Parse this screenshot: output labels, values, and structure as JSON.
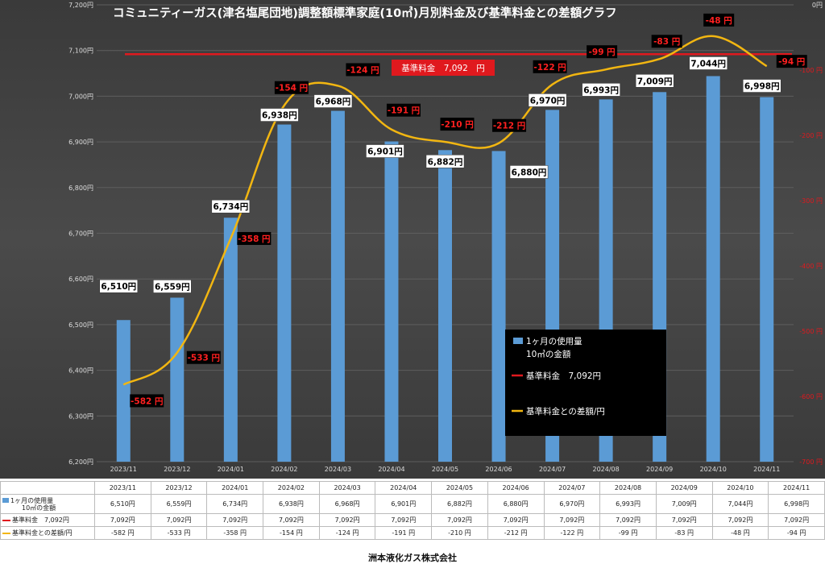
{
  "chart_data": {
    "type": "bar",
    "title": "コミュニティーガス(津名塩尾団地)調整額標準家庭(10㎥)月別料金及び基準料金との差額グラフ",
    "categories": [
      "2023/11",
      "2023/12",
      "2024/01",
      "2024/02",
      "2024/03",
      "2024/04",
      "2024/05",
      "2024/06",
      "2024/07",
      "2024/08",
      "2024/09",
      "2024/10",
      "2024/11"
    ],
    "series": [
      {
        "name_line1": "1ヶ月の使用量",
        "name_line2": "10㎥の金額",
        "type": "bar",
        "axis": "left",
        "color": "#5b9bd5",
        "values": [
          6510,
          6559,
          6734,
          6938,
          6968,
          6901,
          6882,
          6880,
          6970,
          6993,
          7009,
          7044,
          6998
        ],
        "labels": [
          "6,510円",
          "6,559円",
          "6,734円",
          "6,938円",
          "6,968円",
          "6,901円",
          "6,882円",
          "6,880円",
          "6,970円",
          "6,993円",
          "7,009円",
          "7,044円",
          "6,998円"
        ]
      },
      {
        "name": "基準料金　7,092円",
        "type": "line",
        "axis": "left",
        "color": "#e0191e",
        "values": [
          7092,
          7092,
          7092,
          7092,
          7092,
          7092,
          7092,
          7092,
          7092,
          7092,
          7092,
          7092,
          7092
        ]
      },
      {
        "name": "基準料金との差額/円",
        "type": "line",
        "axis": "right",
        "color": "#f2b611",
        "values": [
          -582,
          -533,
          -358,
          -154,
          -124,
          -191,
          -210,
          -212,
          -122,
          -99,
          -83,
          -48,
          -94
        ],
        "labels": [
          "-582 円",
          "-533 円",
          "-358 円",
          "-154 円",
          "-124 円",
          "-191 円",
          "-210 円",
          "-212 円",
          "-122 円",
          "-99 円",
          "-83 円",
          "-48 円",
          "-94 円"
        ]
      }
    ],
    "left_axis": {
      "min": 6200,
      "max": 7200,
      "step": 100,
      "tick_labels": [
        "6,200円",
        "6,300円",
        "6,400円",
        "6,500円",
        "6,600円",
        "6,700円",
        "6,800円",
        "6,900円",
        "7,000円",
        "7,100円",
        "7,200円"
      ]
    },
    "right_axis": {
      "min": -700,
      "max": 0,
      "step": 100,
      "tick_labels": [
        "-700 円",
        "-600 円",
        "-500 円",
        "-400 円",
        "-300 円",
        "-200 円",
        "-100 円",
        "0円"
      ]
    },
    "annotation": "基準料金　7,092　円",
    "legend": {
      "placement": "bottom-right",
      "items": [
        "1ヶ月の使用量",
        "10㎥の金額",
        "基準料金　7,092円",
        "基準料金との差額/円"
      ]
    },
    "table": {
      "row_labels": [
        [
          "1ヶ月の使用量",
          "10㎥の金額"
        ],
        [
          "基準料金　7,092円"
        ],
        [
          "基準料金との差額/円"
        ]
      ],
      "rows": [
        [
          "6,510円",
          "6,559円",
          "6,734円",
          "6,938円",
          "6,968円",
          "6,901円",
          "6,882円",
          "6,880円",
          "6,970円",
          "6,993円",
          "7,009円",
          "7,044円",
          "6,998円"
        ],
        [
          "7,092円",
          "7,092円",
          "7,092円",
          "7,092円",
          "7,092円",
          "7,092円",
          "7,092円",
          "7,092円",
          "7,092円",
          "7,092円",
          "7,092円",
          "7,092円",
          "7,092円"
        ],
        [
          "-582 円",
          "-533 円",
          "-358 円",
          "-154 円",
          "-124 円",
          "-191 円",
          "-210 円",
          "-212 円",
          "-122 円",
          "-99 円",
          "-83 円",
          "-48 円",
          "-94 円"
        ]
      ]
    }
  },
  "footer": "洲本液化ガス株式会社",
  "colors": {
    "bar": "#5b9bd5",
    "baseline": "#e0191e",
    "diff_line": "#f2b611",
    "background": "#404040"
  }
}
